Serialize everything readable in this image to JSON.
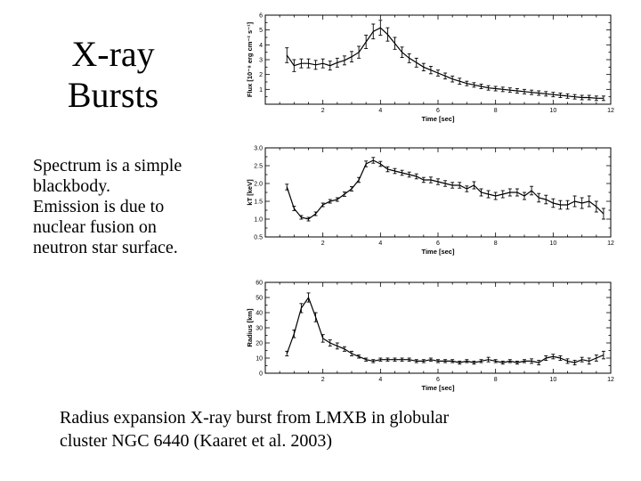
{
  "slide": {
    "title_line1": "X-ray",
    "title_line2": "Bursts",
    "body_lines": [
      "Spectrum is a simple",
      "blackbody.",
      "Emission is due to",
      "nuclear fusion on",
      "neutron star surface."
    ],
    "caption_lines": [
      "Radius expansion X-ray burst from LMXB in globular",
      "cluster NGC 6440 (Kaaret et al. 2003)"
    ]
  },
  "chart_data": [
    {
      "type": "line",
      "xlabel": "Time [sec]",
      "ylabel": "Flux [10⁻⁸ erg cm⁻² s⁻¹]",
      "xlim": [
        0,
        12
      ],
      "ylim": [
        0,
        6
      ],
      "xticks": [
        2,
        4,
        6,
        8,
        10,
        12
      ],
      "yticks": [
        1,
        2,
        3,
        4,
        5,
        6
      ],
      "grid": false,
      "x": [
        0.75,
        1.0,
        1.25,
        1.5,
        1.75,
        2.0,
        2.25,
        2.5,
        2.75,
        3.0,
        3.25,
        3.5,
        3.75,
        4.0,
        4.25,
        4.5,
        4.75,
        5.0,
        5.25,
        5.5,
        5.75,
        6.0,
        6.25,
        6.5,
        6.75,
        7.0,
        7.25,
        7.5,
        7.75,
        8.0,
        8.25,
        8.5,
        8.75,
        9.0,
        9.25,
        9.5,
        9.75,
        10.0,
        10.25,
        10.5,
        10.75,
        11.0,
        11.25,
        11.5,
        11.75
      ],
      "y": [
        3.3,
        2.6,
        2.75,
        2.75,
        2.65,
        2.75,
        2.6,
        2.8,
        2.95,
        3.2,
        3.5,
        4.2,
        4.9,
        5.15,
        4.7,
        4.1,
        3.5,
        3.1,
        2.8,
        2.5,
        2.3,
        2.1,
        1.9,
        1.7,
        1.55,
        1.4,
        1.3,
        1.2,
        1.1,
        1.05,
        1.0,
        0.95,
        0.9,
        0.85,
        0.8,
        0.75,
        0.7,
        0.65,
        0.6,
        0.55,
        0.5,
        0.45,
        0.45,
        0.4,
        0.4
      ],
      "err": [
        0.5,
        0.4,
        0.3,
        0.3,
        0.3,
        0.3,
        0.3,
        0.3,
        0.3,
        0.35,
        0.4,
        0.45,
        0.5,
        0.5,
        0.45,
        0.4,
        0.35,
        0.3,
        0.3,
        0.25,
        0.25,
        0.2,
        0.2,
        0.2,
        0.2,
        0.15,
        0.15,
        0.15,
        0.15,
        0.15,
        0.15,
        0.15,
        0.15,
        0.15,
        0.15,
        0.15,
        0.15,
        0.15,
        0.15,
        0.15,
        0.15,
        0.15,
        0.15,
        0.15,
        0.15
      ]
    },
    {
      "type": "line",
      "xlabel": "Time [sec]",
      "ylabel": "kT [keV]",
      "xlim": [
        0,
        12
      ],
      "ylim": [
        0.5,
        3.0
      ],
      "xticks": [
        2,
        4,
        6,
        8,
        10,
        12
      ],
      "yticks": [
        0.5,
        1.0,
        1.5,
        2.0,
        2.5,
        3.0
      ],
      "yticklabels": [
        "0.5",
        "1.0",
        "1.5",
        "2.0",
        "2.5",
        "3.0"
      ],
      "grid": false,
      "x": [
        0.75,
        1.0,
        1.25,
        1.5,
        1.75,
        2.0,
        2.25,
        2.5,
        2.75,
        3.0,
        3.25,
        3.5,
        3.75,
        4.0,
        4.25,
        4.5,
        4.75,
        5.0,
        5.25,
        5.5,
        5.75,
        6.0,
        6.25,
        6.5,
        6.75,
        7.0,
        7.25,
        7.5,
        7.75,
        8.0,
        8.25,
        8.5,
        8.75,
        9.0,
        9.25,
        9.5,
        9.75,
        10.0,
        10.25,
        10.5,
        10.75,
        11.0,
        11.25,
        11.5,
        11.75
      ],
      "y": [
        1.9,
        1.3,
        1.05,
        1.0,
        1.15,
        1.4,
        1.5,
        1.55,
        1.7,
        1.85,
        2.1,
        2.55,
        2.65,
        2.55,
        2.4,
        2.35,
        2.3,
        2.25,
        2.2,
        2.1,
        2.1,
        2.05,
        2.0,
        1.95,
        1.95,
        1.85,
        1.95,
        1.75,
        1.7,
        1.65,
        1.7,
        1.75,
        1.75,
        1.65,
        1.8,
        1.6,
        1.55,
        1.45,
        1.4,
        1.4,
        1.5,
        1.45,
        1.5,
        1.35,
        1.15
      ],
      "err": [
        0.08,
        0.06,
        0.05,
        0.05,
        0.05,
        0.05,
        0.05,
        0.05,
        0.06,
        0.06,
        0.07,
        0.08,
        0.08,
        0.07,
        0.07,
        0.07,
        0.07,
        0.07,
        0.07,
        0.07,
        0.08,
        0.08,
        0.08,
        0.08,
        0.08,
        0.08,
        0.1,
        0.1,
        0.1,
        0.1,
        0.1,
        0.1,
        0.1,
        0.1,
        0.12,
        0.12,
        0.12,
        0.12,
        0.12,
        0.12,
        0.15,
        0.15,
        0.15,
        0.15,
        0.15
      ]
    },
    {
      "type": "line",
      "xlabel": "Time [sec]",
      "ylabel": "Radius [km]",
      "xlim": [
        0,
        12
      ],
      "ylim": [
        0,
        60
      ],
      "xticks": [
        2,
        4,
        6,
        8,
        10,
        12
      ],
      "yticks": [
        0,
        10,
        20,
        30,
        40,
        50,
        60
      ],
      "grid": false,
      "x": [
        0.75,
        1.0,
        1.25,
        1.5,
        1.75,
        2.0,
        2.25,
        2.5,
        2.75,
        3.0,
        3.25,
        3.5,
        3.75,
        4.0,
        4.25,
        4.5,
        4.75,
        5.0,
        5.25,
        5.5,
        5.75,
        6.0,
        6.25,
        6.5,
        6.75,
        7.0,
        7.25,
        7.5,
        7.75,
        8.0,
        8.25,
        8.5,
        8.75,
        9.0,
        9.25,
        9.5,
        9.75,
        10.0,
        10.25,
        10.5,
        10.75,
        11.0,
        11.25,
        11.5,
        11.75
      ],
      "y": [
        13,
        26,
        43,
        50,
        37,
        23,
        20,
        18,
        16,
        13,
        11,
        9,
        8,
        9,
        9,
        9,
        9,
        9,
        8,
        8,
        9,
        8,
        8,
        8,
        7,
        8,
        7,
        8,
        9,
        8,
        7,
        8,
        7,
        8,
        8,
        7,
        10,
        11,
        10,
        8,
        7,
        9,
        8,
        10,
        12
      ],
      "err": [
        1.5,
        2.5,
        3,
        3,
        3,
        2.5,
        2,
        2,
        1.5,
        1.5,
        1,
        1,
        1,
        1,
        1,
        1,
        1,
        1,
        1,
        1,
        1,
        1,
        1,
        1,
        1,
        1,
        1,
        1,
        1.5,
        1,
        1,
        1,
        1,
        1,
        1.5,
        1.5,
        1.5,
        1.5,
        1.5,
        1.5,
        1.5,
        1.5,
        2,
        2,
        2.5
      ]
    }
  ]
}
